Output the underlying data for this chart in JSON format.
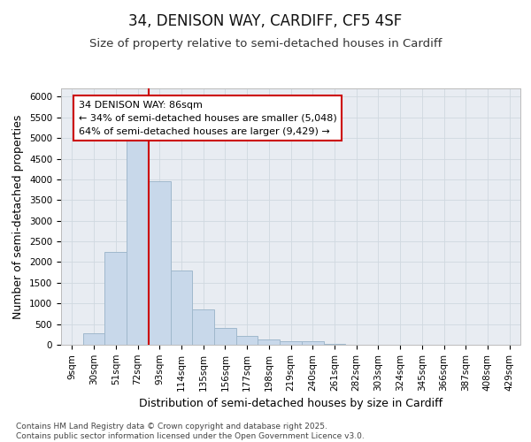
{
  "title": "34, DENISON WAY, CARDIFF, CF5 4SF",
  "subtitle": "Size of property relative to semi-detached houses in Cardiff",
  "xlabel": "Distribution of semi-detached houses by size in Cardiff",
  "ylabel": "Number of semi-detached properties",
  "categories": [
    "9sqm",
    "30sqm",
    "51sqm",
    "72sqm",
    "93sqm",
    "114sqm",
    "135sqm",
    "156sqm",
    "177sqm",
    "198sqm",
    "219sqm",
    "240sqm",
    "261sqm",
    "282sqm",
    "303sqm",
    "324sqm",
    "345sqm",
    "366sqm",
    "387sqm",
    "408sqm",
    "429sqm"
  ],
  "bar_heights": [
    5,
    280,
    2250,
    4950,
    3950,
    1800,
    850,
    400,
    220,
    120,
    80,
    80,
    30,
    10,
    5,
    5,
    2,
    1,
    1,
    1,
    1
  ],
  "bar_color": "#c8d8ea",
  "bar_edge_color": "#a0b8cc",
  "bar_width": 1.0,
  "vline_x": 3.5,
  "vline_color": "#cc0000",
  "annotation_box_text": "34 DENISON WAY: 86sqm\n← 34% of semi-detached houses are smaller (5,048)\n64% of semi-detached houses are larger (9,429) →",
  "ylim": [
    0,
    6200
  ],
  "yticks": [
    0,
    500,
    1000,
    1500,
    2000,
    2500,
    3000,
    3500,
    4000,
    4500,
    5000,
    5500,
    6000
  ],
  "grid_color": "#d0d8e0",
  "background_color": "#e8ecf2",
  "plot_bg_color": "#e8ecf2",
  "footer_text": "Contains HM Land Registry data © Crown copyright and database right 2025.\nContains public sector information licensed under the Open Government Licence v3.0.",
  "annotation_fontsize": 8,
  "title_fontsize": 12,
  "subtitle_fontsize": 9.5,
  "axis_label_fontsize": 9,
  "tick_fontsize": 7.5,
  "footer_fontsize": 6.5
}
